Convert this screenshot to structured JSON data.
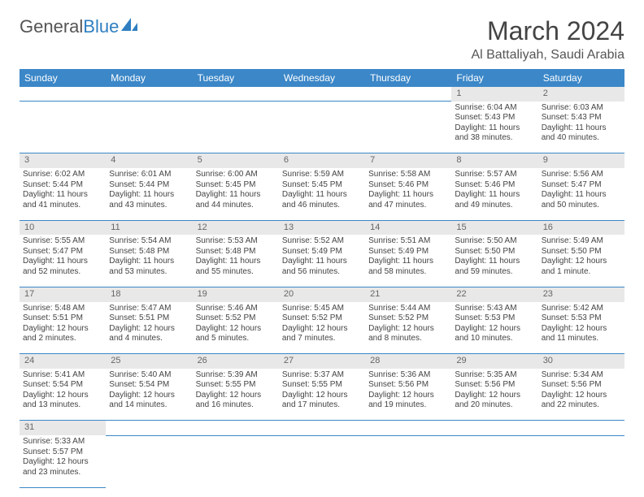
{
  "brand": {
    "name_a": "General",
    "name_b": "Blue"
  },
  "title": "March 2024",
  "location": "Al Battaliyah, Saudi Arabia",
  "colors": {
    "header_bg": "#3b87c8",
    "header_fg": "#ffffff",
    "daynum_bg": "#e8e8e8",
    "rule": "#3b87c8",
    "text": "#444444",
    "brand_gray": "#555555",
    "brand_blue": "#2f7fc1"
  },
  "daysOfWeek": [
    "Sunday",
    "Monday",
    "Tuesday",
    "Wednesday",
    "Thursday",
    "Friday",
    "Saturday"
  ],
  "weeks": [
    [
      null,
      null,
      null,
      null,
      null,
      {
        "n": "1",
        "sr": "Sunrise: 6:04 AM",
        "ss": "Sunset: 5:43 PM",
        "dl1": "Daylight: 11 hours",
        "dl2": "and 38 minutes."
      },
      {
        "n": "2",
        "sr": "Sunrise: 6:03 AM",
        "ss": "Sunset: 5:43 PM",
        "dl1": "Daylight: 11 hours",
        "dl2": "and 40 minutes."
      }
    ],
    [
      {
        "n": "3",
        "sr": "Sunrise: 6:02 AM",
        "ss": "Sunset: 5:44 PM",
        "dl1": "Daylight: 11 hours",
        "dl2": "and 41 minutes."
      },
      {
        "n": "4",
        "sr": "Sunrise: 6:01 AM",
        "ss": "Sunset: 5:44 PM",
        "dl1": "Daylight: 11 hours",
        "dl2": "and 43 minutes."
      },
      {
        "n": "5",
        "sr": "Sunrise: 6:00 AM",
        "ss": "Sunset: 5:45 PM",
        "dl1": "Daylight: 11 hours",
        "dl2": "and 44 minutes."
      },
      {
        "n": "6",
        "sr": "Sunrise: 5:59 AM",
        "ss": "Sunset: 5:45 PM",
        "dl1": "Daylight: 11 hours",
        "dl2": "and 46 minutes."
      },
      {
        "n": "7",
        "sr": "Sunrise: 5:58 AM",
        "ss": "Sunset: 5:46 PM",
        "dl1": "Daylight: 11 hours",
        "dl2": "and 47 minutes."
      },
      {
        "n": "8",
        "sr": "Sunrise: 5:57 AM",
        "ss": "Sunset: 5:46 PM",
        "dl1": "Daylight: 11 hours",
        "dl2": "and 49 minutes."
      },
      {
        "n": "9",
        "sr": "Sunrise: 5:56 AM",
        "ss": "Sunset: 5:47 PM",
        "dl1": "Daylight: 11 hours",
        "dl2": "and 50 minutes."
      }
    ],
    [
      {
        "n": "10",
        "sr": "Sunrise: 5:55 AM",
        "ss": "Sunset: 5:47 PM",
        "dl1": "Daylight: 11 hours",
        "dl2": "and 52 minutes."
      },
      {
        "n": "11",
        "sr": "Sunrise: 5:54 AM",
        "ss": "Sunset: 5:48 PM",
        "dl1": "Daylight: 11 hours",
        "dl2": "and 53 minutes."
      },
      {
        "n": "12",
        "sr": "Sunrise: 5:53 AM",
        "ss": "Sunset: 5:48 PM",
        "dl1": "Daylight: 11 hours",
        "dl2": "and 55 minutes."
      },
      {
        "n": "13",
        "sr": "Sunrise: 5:52 AM",
        "ss": "Sunset: 5:49 PM",
        "dl1": "Daylight: 11 hours",
        "dl2": "and 56 minutes."
      },
      {
        "n": "14",
        "sr": "Sunrise: 5:51 AM",
        "ss": "Sunset: 5:49 PM",
        "dl1": "Daylight: 11 hours",
        "dl2": "and 58 minutes."
      },
      {
        "n": "15",
        "sr": "Sunrise: 5:50 AM",
        "ss": "Sunset: 5:50 PM",
        "dl1": "Daylight: 11 hours",
        "dl2": "and 59 minutes."
      },
      {
        "n": "16",
        "sr": "Sunrise: 5:49 AM",
        "ss": "Sunset: 5:50 PM",
        "dl1": "Daylight: 12 hours",
        "dl2": "and 1 minute."
      }
    ],
    [
      {
        "n": "17",
        "sr": "Sunrise: 5:48 AM",
        "ss": "Sunset: 5:51 PM",
        "dl1": "Daylight: 12 hours",
        "dl2": "and 2 minutes."
      },
      {
        "n": "18",
        "sr": "Sunrise: 5:47 AM",
        "ss": "Sunset: 5:51 PM",
        "dl1": "Daylight: 12 hours",
        "dl2": "and 4 minutes."
      },
      {
        "n": "19",
        "sr": "Sunrise: 5:46 AM",
        "ss": "Sunset: 5:52 PM",
        "dl1": "Daylight: 12 hours",
        "dl2": "and 5 minutes."
      },
      {
        "n": "20",
        "sr": "Sunrise: 5:45 AM",
        "ss": "Sunset: 5:52 PM",
        "dl1": "Daylight: 12 hours",
        "dl2": "and 7 minutes."
      },
      {
        "n": "21",
        "sr": "Sunrise: 5:44 AM",
        "ss": "Sunset: 5:52 PM",
        "dl1": "Daylight: 12 hours",
        "dl2": "and 8 minutes."
      },
      {
        "n": "22",
        "sr": "Sunrise: 5:43 AM",
        "ss": "Sunset: 5:53 PM",
        "dl1": "Daylight: 12 hours",
        "dl2": "and 10 minutes."
      },
      {
        "n": "23",
        "sr": "Sunrise: 5:42 AM",
        "ss": "Sunset: 5:53 PM",
        "dl1": "Daylight: 12 hours",
        "dl2": "and 11 minutes."
      }
    ],
    [
      {
        "n": "24",
        "sr": "Sunrise: 5:41 AM",
        "ss": "Sunset: 5:54 PM",
        "dl1": "Daylight: 12 hours",
        "dl2": "and 13 minutes."
      },
      {
        "n": "25",
        "sr": "Sunrise: 5:40 AM",
        "ss": "Sunset: 5:54 PM",
        "dl1": "Daylight: 12 hours",
        "dl2": "and 14 minutes."
      },
      {
        "n": "26",
        "sr": "Sunrise: 5:39 AM",
        "ss": "Sunset: 5:55 PM",
        "dl1": "Daylight: 12 hours",
        "dl2": "and 16 minutes."
      },
      {
        "n": "27",
        "sr": "Sunrise: 5:37 AM",
        "ss": "Sunset: 5:55 PM",
        "dl1": "Daylight: 12 hours",
        "dl2": "and 17 minutes."
      },
      {
        "n": "28",
        "sr": "Sunrise: 5:36 AM",
        "ss": "Sunset: 5:56 PM",
        "dl1": "Daylight: 12 hours",
        "dl2": "and 19 minutes."
      },
      {
        "n": "29",
        "sr": "Sunrise: 5:35 AM",
        "ss": "Sunset: 5:56 PM",
        "dl1": "Daylight: 12 hours",
        "dl2": "and 20 minutes."
      },
      {
        "n": "30",
        "sr": "Sunrise: 5:34 AM",
        "ss": "Sunset: 5:56 PM",
        "dl1": "Daylight: 12 hours",
        "dl2": "and 22 minutes."
      }
    ],
    [
      {
        "n": "31",
        "sr": "Sunrise: 5:33 AM",
        "ss": "Sunset: 5:57 PM",
        "dl1": "Daylight: 12 hours",
        "dl2": "and 23 minutes."
      },
      null,
      null,
      null,
      null,
      null,
      null
    ]
  ]
}
